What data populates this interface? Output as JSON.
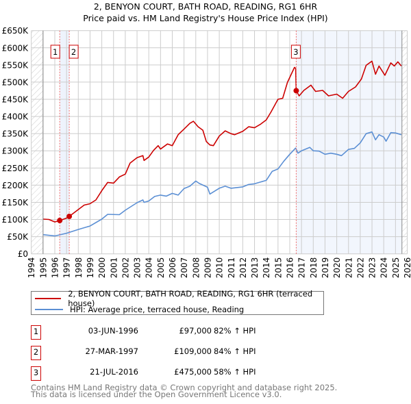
{
  "chart_data": {
    "type": "line",
    "title": "2, BENYON COURT, BATH ROAD, READING, RG1 6HR",
    "subtitle": "Price paid vs. HM Land Registry's House Price Index (HPI)",
    "xlabel": "",
    "ylabel": "",
    "xlim": [
      1994,
      2026
    ],
    "ylim": [
      0,
      650000
    ],
    "grid": true,
    "y_ticks": [
      0,
      50000,
      100000,
      150000,
      200000,
      250000,
      300000,
      350000,
      400000,
      450000,
      500000,
      550000,
      600000,
      650000
    ],
    "y_tick_labels": [
      "£0",
      "£50K",
      "£100K",
      "£150K",
      "£200K",
      "£250K",
      "£300K",
      "£350K",
      "£400K",
      "£450K",
      "£500K",
      "£550K",
      "£600K",
      "£650K"
    ],
    "x_ticks": [
      1994,
      1995,
      1996,
      1997,
      1998,
      1999,
      2000,
      2001,
      2002,
      2003,
      2004,
      2005,
      2006,
      2007,
      2008,
      2009,
      2010,
      2011,
      2012,
      2013,
      2014,
      2015,
      2016,
      2017,
      2018,
      2019,
      2020,
      2021,
      2022,
      2023,
      2024,
      2025,
      2026
    ],
    "x_tick_labels": [
      "1994",
      "1995",
      "1996",
      "1997",
      "1998",
      "1999",
      "2000",
      "2001",
      "2002",
      "2003",
      "2004",
      "2005",
      "2006",
      "2007",
      "2008",
      "2009",
      "2010",
      "2011",
      "2012",
      "2013",
      "2014",
      "2015",
      "2016",
      "2017",
      "2018",
      "2019",
      "2020",
      "2021",
      "2022",
      "2023",
      "2024",
      "2025",
      "2026"
    ],
    "data_range": [
      1995,
      2025.55
    ],
    "series": [
      {
        "name": "2, BENYON COURT, BATH ROAD, READING, RG1 6HR (terraced house)",
        "color": "#cc0000",
        "x": [
          1995,
          1995.5,
          1996,
          1996.42,
          1997,
          1997.23,
          1998,
          1998.5,
          1999,
          1999.5,
          2000,
          2000.5,
          2001,
          2001.5,
          2002,
          2002.4,
          2003,
          2003.5,
          2003.6,
          2004,
          2004.4,
          2004.8,
          2005,
          2005.6,
          2006,
          2006.5,
          2007,
          2007.5,
          2007.8,
          2008.2,
          2008.6,
          2008.9,
          2009.2,
          2009.5,
          2010,
          2010.5,
          2011,
          2011.3,
          2012,
          2012.5,
          2013,
          2013.5,
          2014,
          2014.4,
          2015,
          2015.4,
          2015.8,
          2016.4,
          2016.5,
          2016.55,
          2016.8,
          2017.2,
          2017.8,
          2018.2,
          2018.8,
          2019.3,
          2020,
          2020.5,
          2021,
          2021.6,
          2022.1,
          2022.5,
          2023,
          2023.3,
          2023.6,
          2024.1,
          2024.6,
          2024.9,
          2025.2,
          2025.5
        ],
        "y": [
          101000,
          100000,
          93000,
          97000,
          104000,
          109000,
          129000,
          142000,
          146000,
          157000,
          184000,
          208000,
          206000,
          224000,
          232000,
          264000,
          280000,
          286000,
          272000,
          282000,
          301000,
          315000,
          305000,
          320000,
          315000,
          347000,
          363000,
          380000,
          386000,
          370000,
          360000,
          327000,
          317000,
          315000,
          343000,
          358000,
          350000,
          347000,
          357000,
          370000,
          367000,
          377000,
          390000,
          413000,
          450000,
          453000,
          499000,
          543000,
          540000,
          475000,
          460000,
          476000,
          491000,
          473000,
          476000,
          460000,
          465000,
          453000,
          473000,
          486000,
          509000,
          549000,
          561000,
          523000,
          547000,
          520000,
          556000,
          547000,
          559000,
          547000
        ]
      },
      {
        "name": "HPI: Average price, terraced house, Reading",
        "color": "#5b8fd4",
        "x": [
          1995,
          1996,
          1997,
          1998,
          1999,
          2000,
          2000.5,
          2001.5,
          2002,
          2003,
          2003.5,
          2003.6,
          2004,
          2004.5,
          2005,
          2005.5,
          2006,
          2006.5,
          2007,
          2007.5,
          2008,
          2008.3,
          2009,
          2009.2,
          2010,
          2010.5,
          2011,
          2012,
          2012.5,
          2013,
          2014,
          2014.5,
          2015,
          2015.5,
          2016,
          2016.5,
          2016.7,
          2017,
          2017.7,
          2018,
          2018.5,
          2019,
          2019.5,
          2020,
          2020.4,
          2021,
          2021.5,
          2022,
          2022.5,
          2023,
          2023.3,
          2023.6,
          2024,
          2024.2,
          2024.6,
          2025,
          2025.5
        ],
        "y": [
          55800,
          52000,
          60000,
          71000,
          81000,
          101000,
          115000,
          114000,
          127000,
          149000,
          157000,
          150000,
          154000,
          167000,
          171000,
          168000,
          176000,
          171000,
          190000,
          197000,
          212000,
          205000,
          194000,
          174000,
          191000,
          197000,
          191000,
          195000,
          202000,
          204000,
          214000,
          240000,
          247000,
          270000,
          290000,
          308000,
          293000,
          300000,
          310000,
          300000,
          299000,
          290000,
          293000,
          290000,
          286000,
          304000,
          307000,
          323000,
          350000,
          355000,
          332000,
          347000,
          340000,
          328000,
          353000,
          352000,
          347000
        ]
      }
    ],
    "sales": [
      {
        "label": "1",
        "date": "03-JUN-1996",
        "x": 1996.42,
        "price": 97000,
        "price_text": "£97,000",
        "hpi": "82% ↑ HPI"
      },
      {
        "label": "2",
        "date": "27-MAR-1997",
        "x": 1997.23,
        "price": 109000,
        "price_text": "£109,000",
        "hpi": "84% ↑ HPI"
      },
      {
        "label": "3",
        "date": "21-JUL-2016",
        "x": 2016.55,
        "price": 475000,
        "price_text": "£475,000",
        "hpi": "58% ↑ HPI"
      }
    ],
    "legend": [
      "2, BENYON COURT, BATH ROAD, READING, RG1 6HR (terraced house)",
      "HPI: Average price, terraced house, Reading"
    ],
    "legend_placement": "bottom"
  },
  "footer": {
    "line1": "Contains HM Land Registry data © Crown copyright and database right 2025.",
    "line2": "This data is licensed under the Open Government Licence v3.0."
  }
}
